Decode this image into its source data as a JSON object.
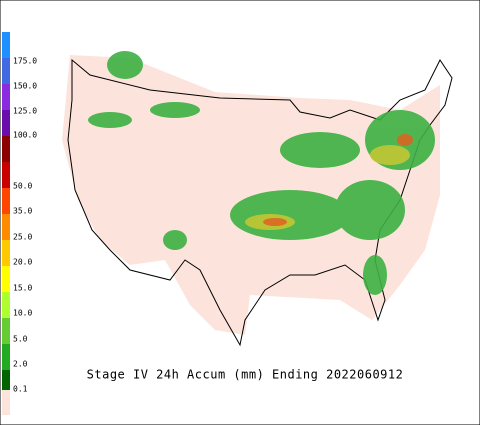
{
  "title": "Stage IV 24h Accum (mm) Ending 2022060912",
  "legend": {
    "labels": [
      "175.0",
      "150.0",
      "125.0",
      "100.0",
      "50.0",
      "35.0",
      "25.0",
      "20.0",
      "15.0",
      "10.0",
      "5.0",
      "2.0",
      "0.1"
    ]
  }
}
